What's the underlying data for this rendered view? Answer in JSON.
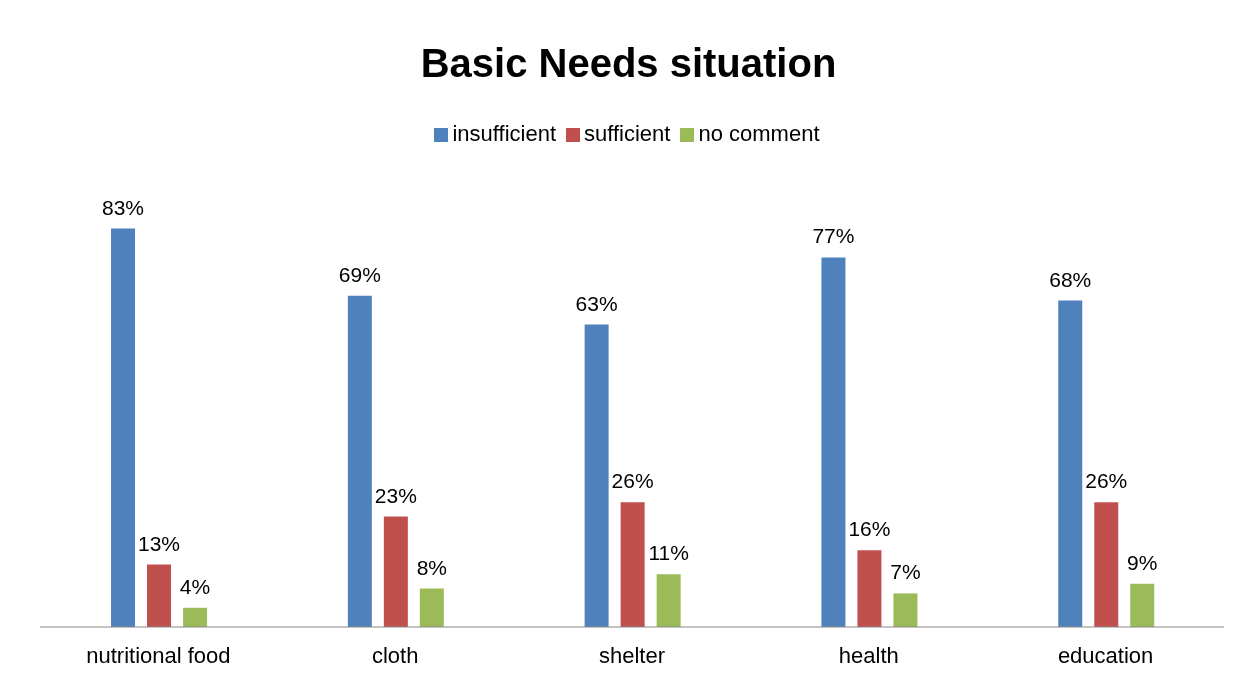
{
  "chart_data": {
    "type": "bar",
    "title": "Basic Needs situation",
    "categories": [
      "nutritional food",
      "cloth",
      "shelter",
      "health",
      "education"
    ],
    "series": [
      {
        "name": "insufficient",
        "color": "#4f81bd",
        "values": [
          83,
          69,
          63,
          77,
          68
        ],
        "value_labels": [
          "83%",
          "69%",
          "63%",
          "77%",
          "68%"
        ]
      },
      {
        "name": "sufficient",
        "color": "#c0504d",
        "values": [
          13,
          23,
          26,
          16,
          26
        ],
        "value_labels": [
          "13%",
          "23%",
          "26%",
          "16%",
          "26%"
        ]
      },
      {
        "name": "no comment",
        "color": "#9bbb59",
        "values": [
          4,
          8,
          11,
          7,
          9
        ],
        "value_labels": [
          "4%",
          "8%",
          "11%",
          "7%",
          "9%"
        ]
      }
    ],
    "legend": "top",
    "grid": false
  }
}
